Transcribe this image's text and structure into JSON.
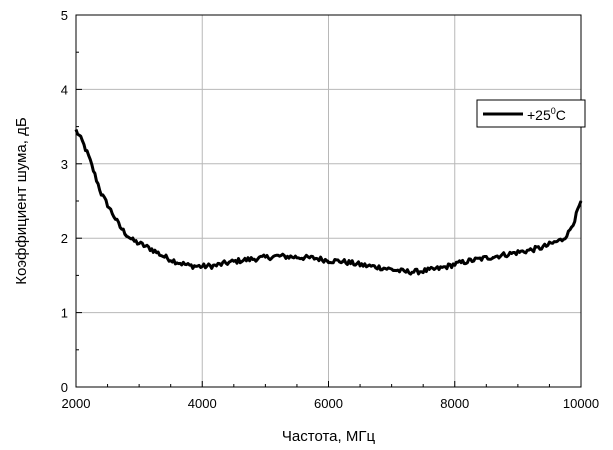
{
  "chart_data": {
    "type": "line",
    "title": "",
    "xlabel": "Частота, МГц",
    "ylabel": "Коэффициент шума, дБ",
    "xlim": [
      2000,
      10000
    ],
    "ylim": [
      0,
      5
    ],
    "xticks": [
      2000,
      4000,
      6000,
      8000,
      10000
    ],
    "yticks": [
      0,
      1,
      2,
      3,
      4,
      5
    ],
    "x_minor_step": 500,
    "y_minor_step": 0.5,
    "grid": true,
    "legend_position": "top-right",
    "series": [
      {
        "name": "+25 °C",
        "legend_main": "+25",
        "legend_sup": "0",
        "legend_unit": "C",
        "color": "#000000",
        "x": [
          2000,
          2100,
          2200,
          2300,
          2400,
          2500,
          2600,
          2700,
          2800,
          2900,
          3000,
          3200,
          3400,
          3600,
          3800,
          4000,
          4200,
          4400,
          4600,
          4800,
          5000,
          5200,
          5400,
          5600,
          5800,
          6000,
          6200,
          6400,
          6600,
          6800,
          7000,
          7200,
          7400,
          7600,
          7800,
          8000,
          8200,
          8400,
          8600,
          8800,
          9000,
          9200,
          9400,
          9600,
          9700,
          9800,
          9900,
          10000
        ],
        "y": [
          3.45,
          3.3,
          3.1,
          2.85,
          2.6,
          2.45,
          2.3,
          2.15,
          2.05,
          1.97,
          1.93,
          1.85,
          1.75,
          1.68,
          1.63,
          1.62,
          1.63,
          1.67,
          1.7,
          1.72,
          1.74,
          1.76,
          1.75,
          1.74,
          1.73,
          1.7,
          1.69,
          1.66,
          1.63,
          1.61,
          1.58,
          1.55,
          1.55,
          1.57,
          1.6,
          1.65,
          1.69,
          1.72,
          1.75,
          1.78,
          1.81,
          1.84,
          1.88,
          1.95,
          1.98,
          2.07,
          2.25,
          2.5
        ]
      }
    ]
  }
}
